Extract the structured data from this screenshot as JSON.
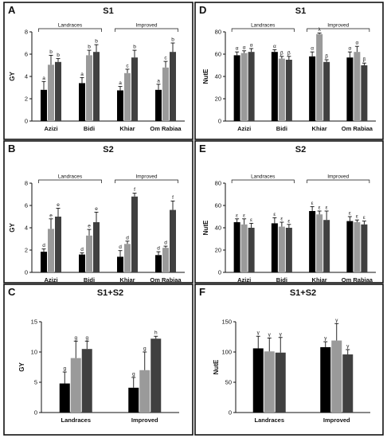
{
  "figure": {
    "colors": {
      "series1": "#000000",
      "series2": "#9a9a9a",
      "series3": "#404040"
    }
  },
  "chart_data": [
    {
      "panel": "A",
      "title": "S1",
      "type": "bar",
      "ylabel": "GY",
      "ylim": [
        0,
        8
      ],
      "yticks": [
        0,
        2,
        4,
        6,
        8
      ],
      "categories": [
        "Azizi",
        "Bidi",
        "Khiar",
        "Om Rabiaa"
      ],
      "groups": [
        {
          "label": "Landraces",
          "from": 0,
          "to": 1
        },
        {
          "label": "Improved",
          "from": 2,
          "to": 3
        }
      ],
      "series": [
        {
          "values": [
            2.8,
            3.4,
            2.75,
            2.8
          ],
          "errors": [
            0.75,
            0.5,
            0.35,
            0.5
          ],
          "letters": [
            "a",
            "a",
            "a",
            "a"
          ]
        },
        {
          "values": [
            5.05,
            5.9,
            4.3,
            4.8
          ],
          "errors": [
            0.85,
            0.45,
            0.35,
            0.55
          ],
          "letters": [
            "b",
            "b",
            "c",
            "c"
          ]
        },
        {
          "values": [
            5.3,
            6.2,
            5.7,
            6.2
          ],
          "errors": [
            0.3,
            0.65,
            0.65,
            0.8
          ],
          "letters": [
            "b",
            "b",
            "b",
            "b"
          ]
        }
      ]
    },
    {
      "panel": "D",
      "title": "S1",
      "type": "bar",
      "ylabel": "NutE",
      "ylim": [
        0,
        80
      ],
      "yticks": [
        0,
        20,
        40,
        60,
        80
      ],
      "categories": [
        "Azizi",
        "Bidi",
        "Khiar",
        "Om Rabiaa"
      ],
      "groups": [
        {
          "label": "Landraces",
          "from": 0,
          "to": 1
        },
        {
          "label": "Improved",
          "from": 2,
          "to": 3
        }
      ],
      "series": [
        {
          "values": [
            59,
            62,
            58,
            57
          ],
          "errors": [
            3,
            2,
            4,
            5
          ],
          "letters": [
            "α",
            "α",
            "α",
            "α"
          ]
        },
        {
          "values": [
            61,
            56,
            78,
            62
          ],
          "errors": [
            2,
            2,
            1,
            5
          ],
          "letters": [
            "α",
            "β",
            "λ",
            "α"
          ]
        },
        {
          "values": [
            62,
            55,
            53,
            50
          ],
          "errors": [
            3,
            3,
            2,
            2
          ],
          "letters": [
            "α",
            "β",
            "β",
            "β"
          ]
        }
      ]
    },
    {
      "panel": "B",
      "title": "S2",
      "type": "bar",
      "ylabel": "GY",
      "ylim": [
        0,
        8
      ],
      "yticks": [
        0,
        2,
        4,
        6,
        8
      ],
      "categories": [
        "Azizi",
        "Bidi",
        "Khiar",
        "Om Rabiaa"
      ],
      "groups": [
        {
          "label": "Landraces",
          "from": 0,
          "to": 1
        },
        {
          "label": "Improved",
          "from": 2,
          "to": 3
        }
      ],
      "series": [
        {
          "values": [
            1.85,
            1.6,
            1.4,
            1.55
          ],
          "errors": [
            0.25,
            0.15,
            0.55,
            0.3
          ],
          "letters": [
            "d",
            "d",
            "d",
            "d"
          ]
        },
        {
          "values": [
            3.9,
            3.3,
            2.55,
            2.2
          ],
          "errors": [
            0.9,
            0.55,
            0.25,
            0.15
          ],
          "letters": [
            "e",
            "e",
            "d",
            "d"
          ]
        },
        {
          "values": [
            5.0,
            4.5,
            6.8,
            5.6
          ],
          "errors": [
            0.75,
            0.9,
            0.3,
            0.8
          ],
          "letters": [
            "e",
            "e",
            "f",
            "f"
          ]
        }
      ]
    },
    {
      "panel": "E",
      "title": "S2",
      "type": "bar",
      "ylabel": "NutE",
      "ylim": [
        0,
        80
      ],
      "yticks": [
        0,
        20,
        40,
        60,
        80
      ],
      "categories": [
        "Azizi",
        "Bidi",
        "Khiar",
        "Om Rabiaa"
      ],
      "groups": [
        {
          "label": "Landraces",
          "from": 0,
          "to": 1
        },
        {
          "label": "Improved",
          "from": 2,
          "to": 3
        }
      ],
      "series": [
        {
          "values": [
            45,
            44,
            55,
            46
          ],
          "errors": [
            3,
            5,
            4,
            4
          ],
          "letters": [
            "ε",
            "ε",
            "ε",
            "ε"
          ]
        },
        {
          "values": [
            43,
            41,
            52,
            45
          ],
          "errors": [
            5,
            4,
            3,
            2
          ],
          "letters": [
            "ε",
            "ε",
            "ε",
            "ε"
          ]
        },
        {
          "values": [
            40,
            40,
            47,
            43
          ],
          "errors": [
            4,
            3,
            8,
            3
          ],
          "letters": [
            "ε",
            "ε",
            "ε",
            "ε"
          ]
        }
      ]
    },
    {
      "panel": "C",
      "title": "S1+S2",
      "type": "bar",
      "ylabel": "GY",
      "ylim": [
        0,
        15
      ],
      "yticks": [
        0,
        5,
        10,
        15
      ],
      "categories": [
        "Landraces",
        "Improved"
      ],
      "groups": [],
      "series": [
        {
          "values": [
            4.8,
            4.1
          ],
          "errors": [
            1.9,
            1.7
          ],
          "letters": [
            "g",
            "g"
          ]
        },
        {
          "values": [
            9.0,
            7.0
          ],
          "errors": [
            2.8,
            3.0
          ],
          "letters": [
            "g",
            "g"
          ]
        },
        {
          "values": [
            10.5,
            12.2
          ],
          "errors": [
            1.3,
            0.4
          ],
          "letters": [
            "g",
            "h"
          ]
        }
      ]
    },
    {
      "panel": "F",
      "title": "S1+S2",
      "type": "bar",
      "ylabel": "NutE",
      "ylim": [
        0,
        150
      ],
      "yticks": [
        0,
        50,
        100,
        150
      ],
      "categories": [
        "Landraces",
        "Improved"
      ],
      "groups": [],
      "series": [
        {
          "values": [
            106,
            108
          ],
          "errors": [
            20,
            9
          ],
          "letters": [
            "γ",
            "γ"
          ]
        },
        {
          "values": [
            101,
            119
          ],
          "errors": [
            22,
            28
          ],
          "letters": [
            "γ",
            "γ"
          ]
        },
        {
          "values": [
            99,
            96
          ],
          "errors": [
            25,
            8
          ],
          "letters": [
            "γ",
            "γ"
          ]
        }
      ]
    }
  ]
}
